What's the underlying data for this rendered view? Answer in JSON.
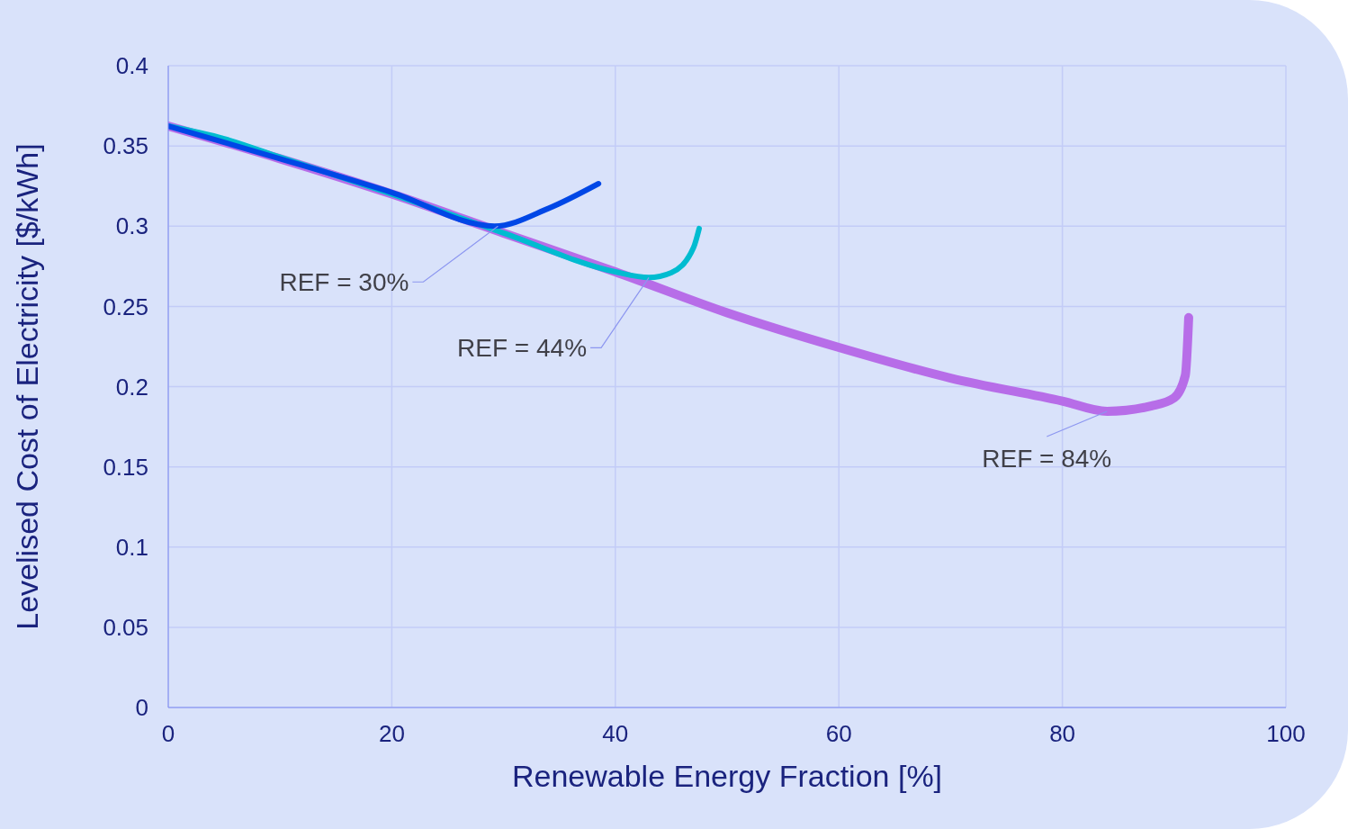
{
  "chart_data": {
    "type": "line",
    "xlabel": "Renewable Energy Fraction [%]",
    "ylabel": "Levelised Cost of Electricity [$/kWh]",
    "xlim": [
      0,
      100
    ],
    "xticks": [
      0,
      20,
      40,
      60,
      80,
      100
    ],
    "ylim": [
      0,
      0.4
    ],
    "yticks": [
      0,
      0.05,
      0.1,
      0.15,
      0.2,
      0.25,
      0.3,
      0.35,
      0.4
    ],
    "grid": true,
    "legend": false,
    "marker": "none",
    "line_style": "solid",
    "series": [
      {
        "color": "#b76de8",
        "x": [
          0,
          10,
          20,
          30,
          40,
          50,
          60,
          70,
          80,
          84,
          88,
          90,
          91,
          91.3
        ],
        "values": [
          0.3624,
          0.342,
          0.32,
          0.2957,
          0.2715,
          0.246,
          0.2244,
          0.2053,
          0.191,
          0.1846,
          0.188,
          0.193,
          0.207,
          0.243
        ]
      },
      {
        "color": "#00bcd0",
        "x": [
          0,
          5,
          10,
          20,
          30,
          40,
          43,
          45,
          47,
          47.5
        ],
        "values": [
          0.3624,
          0.3545,
          0.343,
          0.32,
          0.2957,
          0.2715,
          0.268,
          0.271,
          0.2867,
          0.2985
        ]
      },
      {
        "color": "#0047e6",
        "x": [
          0,
          10,
          20,
          29.2,
          34,
          38.5
        ],
        "values": [
          0.3624,
          0.342,
          0.321,
          0.3,
          0.311,
          0.3265
        ]
      }
    ],
    "annotations": [
      {
        "text": "REF = 30%",
        "x": 29.5,
        "y": 0.3
      },
      {
        "text": "REF = 44%",
        "x": 43,
        "y": 0.268
      },
      {
        "text": "REF = 84%",
        "x": 84,
        "y": 0.1846
      }
    ]
  }
}
